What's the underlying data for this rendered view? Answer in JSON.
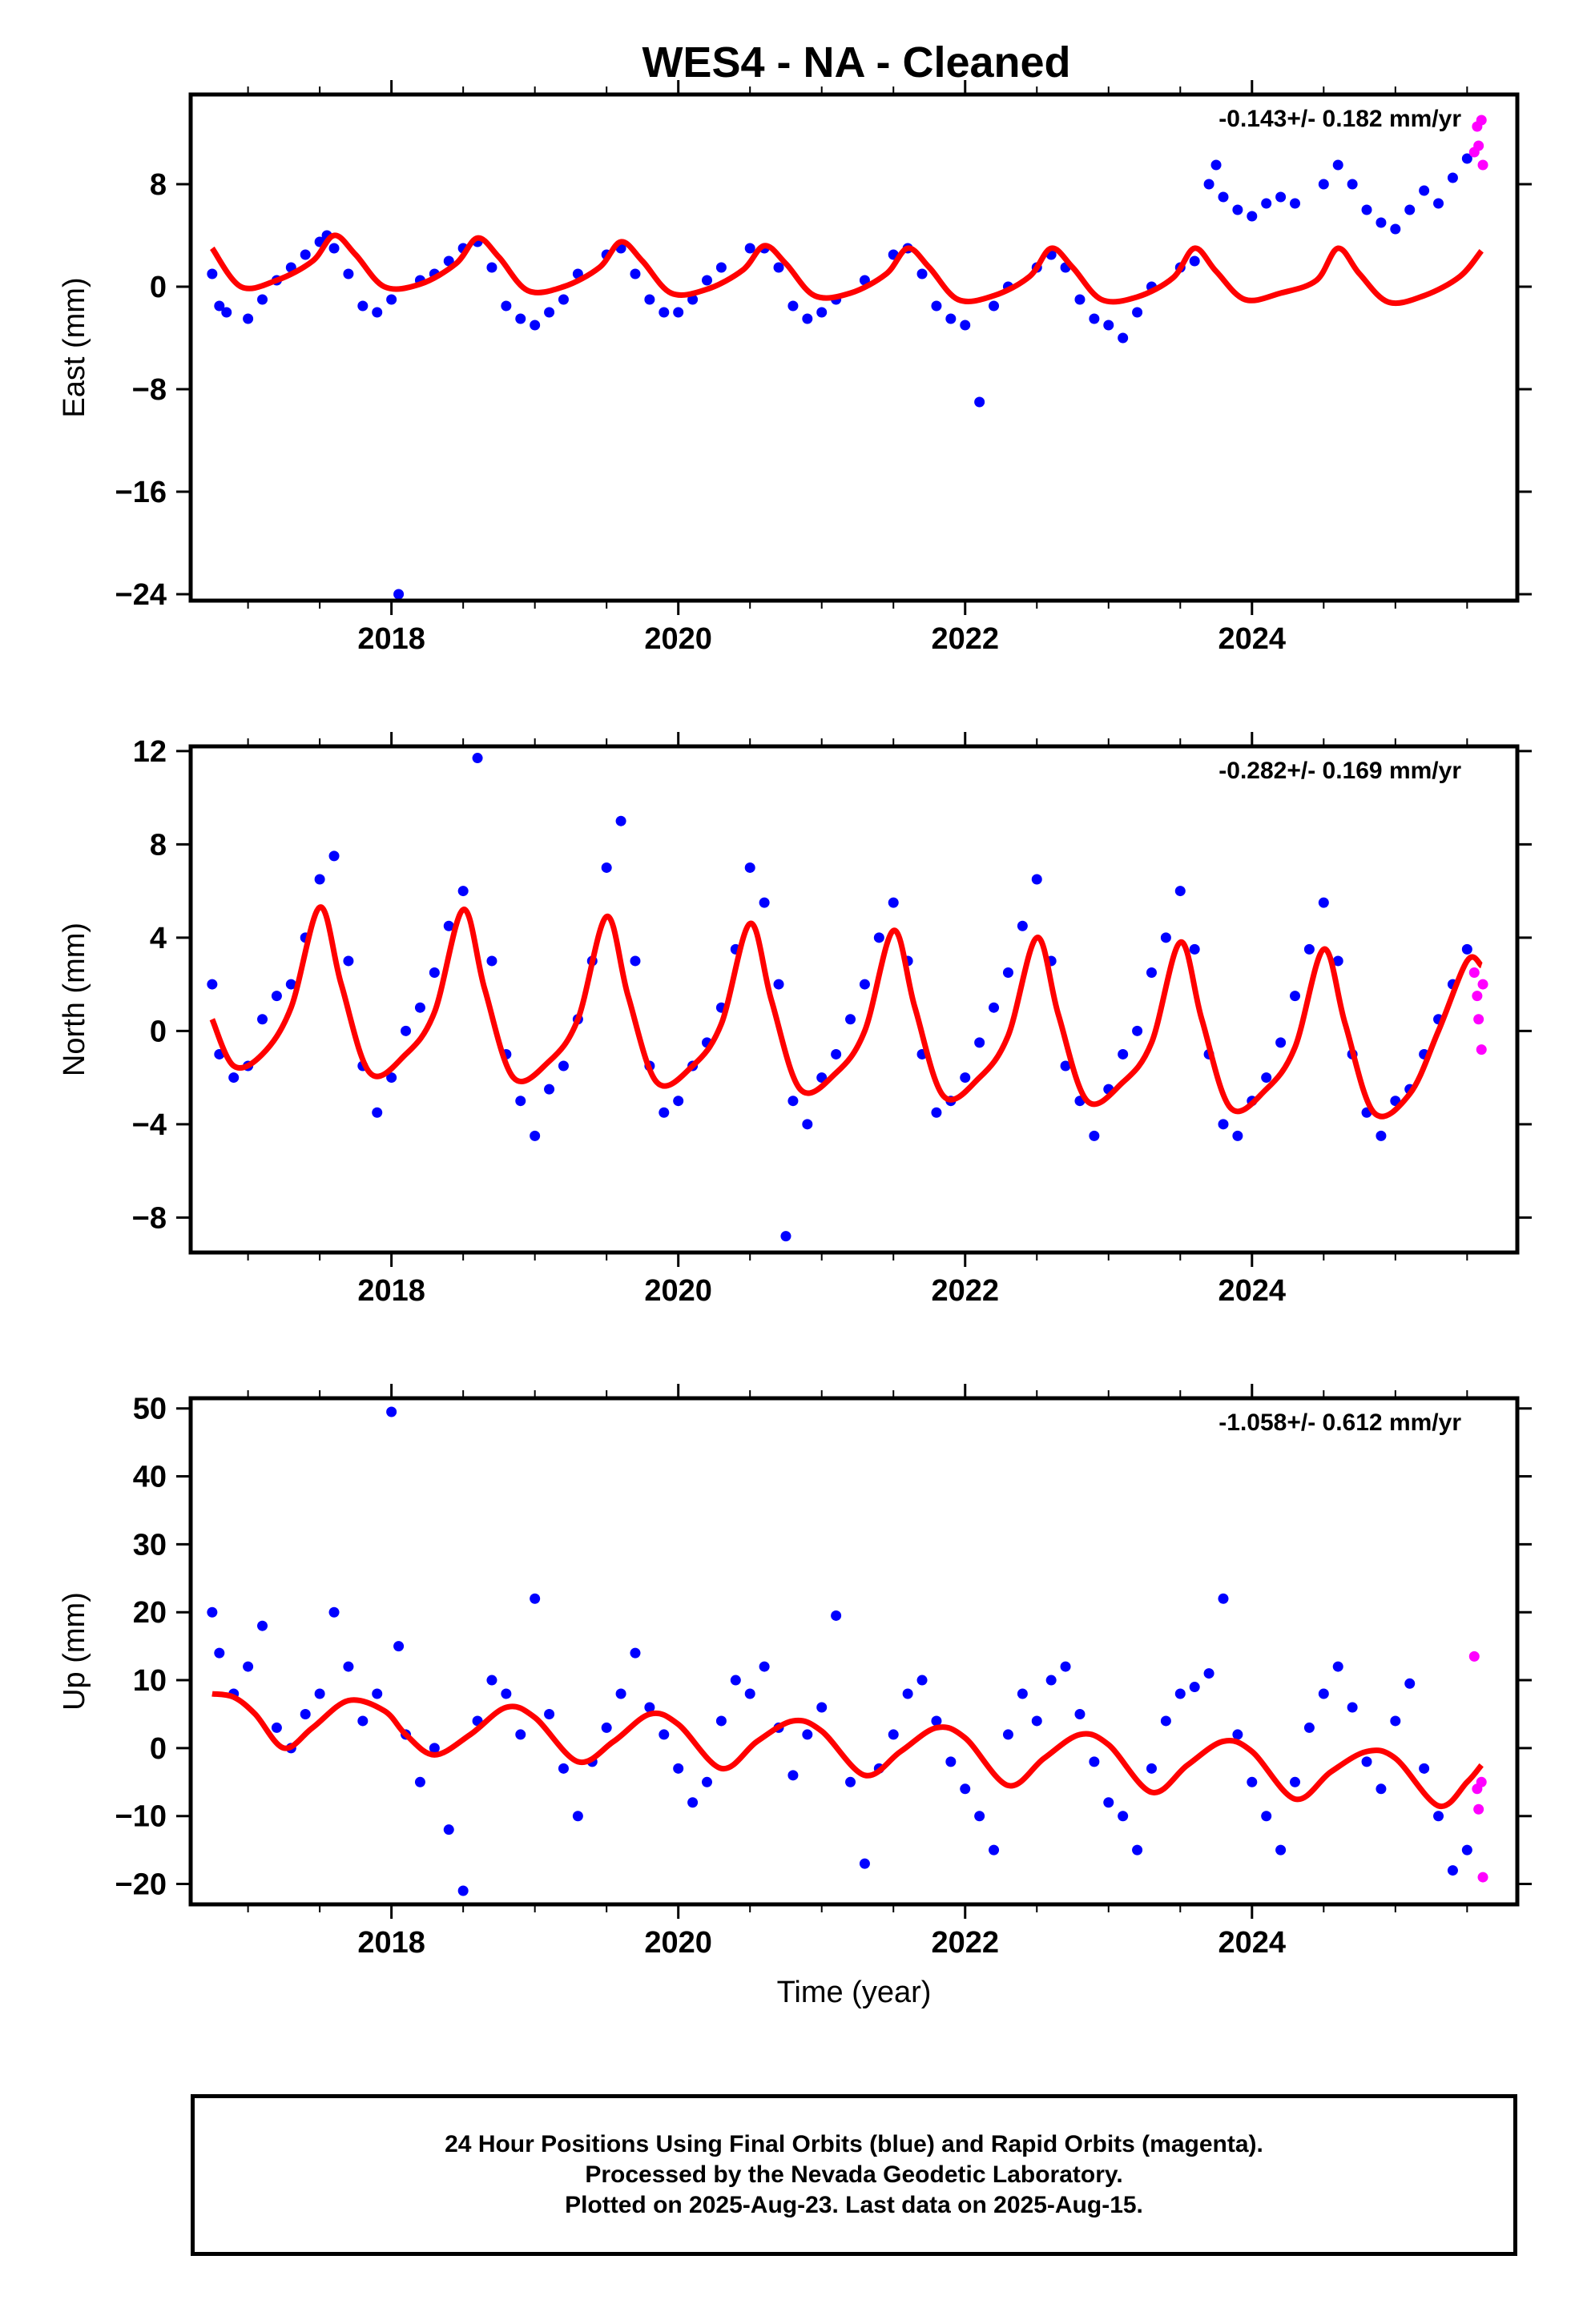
{
  "title": "WES4  - NA - Cleaned",
  "xlabel": "Time (year)",
  "footer": [
    "24 Hour Positions Using Final Orbits (blue) and Rapid Orbits (magenta).",
    "Processed by the Nevada Geodetic Laboratory.",
    "Plotted on 2025-Aug-23. Last data on 2025-Aug-15."
  ],
  "colors": {
    "final": "#0000ff",
    "rapid": "#ff00ff",
    "model": "#ff0000",
    "axis": "#000000"
  },
  "chart_data": [
    {
      "type": "scatter",
      "ylabel": "East (mm)",
      "rate": "-0.143+/- 0.182 mm/yr",
      "xlim": [
        2016.6,
        2025.85
      ],
      "ylim": [
        -24.5,
        15
      ],
      "xticks": [
        2018,
        2020,
        2022,
        2024
      ],
      "yticks": [
        -24,
        -16,
        -8,
        0,
        8
      ],
      "ytick_labels": [
        "−24",
        "−16",
        "−8",
        "0",
        "8"
      ],
      "series": [
        {
          "x": [
            2016.75,
            2016.8,
            2016.85,
            2017.0,
            2017.1,
            2017.2,
            2017.3,
            2017.4,
            2017.5,
            2017.55,
            2017.6,
            2017.7,
            2017.8,
            2017.9,
            2018.0,
            2018.05,
            2018.2,
            2018.3,
            2018.4,
            2018.5,
            2018.6,
            2018.7,
            2018.8,
            2018.9,
            2019.0,
            2019.1,
            2019.2,
            2019.3,
            2019.5,
            2019.6,
            2019.7,
            2019.8,
            2019.9,
            2020.0,
            2020.1,
            2020.2,
            2020.3,
            2020.5,
            2020.6,
            2020.7,
            2020.8,
            2020.9,
            2021.0,
            2021.1,
            2021.3,
            2021.5,
            2021.6,
            2021.7,
            2021.8,
            2021.9,
            2022.0,
            2022.1,
            2022.2,
            2022.3,
            2022.5,
            2022.6,
            2022.7,
            2022.8,
            2022.9,
            2023.0,
            2023.1,
            2023.2,
            2023.3,
            2023.5,
            2023.6,
            2023.7,
            2023.75,
            2023.8,
            2023.9,
            2024.0,
            2024.1,
            2024.2,
            2024.3,
            2024.5,
            2024.6,
            2024.7,
            2024.8,
            2024.9,
            2025.0,
            2025.1,
            2025.2,
            2025.3,
            2025.4,
            2025.5
          ],
          "y": [
            1.0,
            -1.5,
            -2.0,
            -2.5,
            -1.0,
            0.5,
            1.5,
            2.5,
            3.5,
            4.0,
            3.0,
            1.0,
            -1.5,
            -2.0,
            -1.0,
            -24.0,
            0.5,
            1.0,
            2.0,
            3.0,
            3.5,
            1.5,
            -1.5,
            -2.5,
            -3.0,
            -2.0,
            -1.0,
            1.0,
            2.5,
            3.0,
            1.0,
            -1.0,
            -2.0,
            -2.0,
            -1.0,
            0.5,
            1.5,
            3.0,
            3.0,
            1.5,
            -1.5,
            -2.5,
            -2.0,
            -1.0,
            0.5,
            2.5,
            3.0,
            1.0,
            -1.5,
            -2.5,
            -3.0,
            -9.0,
            -1.5,
            0.0,
            1.5,
            2.5,
            1.5,
            -1.0,
            -2.5,
            -3.0,
            -4.0,
            -2.0,
            0.0,
            1.5,
            2.0,
            8.0,
            9.5,
            7.0,
            6.0,
            5.5,
            6.5,
            7.0,
            6.5,
            8.0,
            9.5,
            8.0,
            6.0,
            5.0,
            4.5,
            6.0,
            7.5,
            6.5,
            8.5,
            10.0
          ],
          "color": "#0000ff"
        },
        {
          "x": [
            2025.55,
            2025.57,
            2025.58,
            2025.6,
            2025.61
          ],
          "y": [
            10.5,
            12.5,
            11.0,
            13.0,
            9.5
          ],
          "color": "#ff00ff"
        }
      ],
      "model": {
        "x": [
          2016.75,
          2016.95,
          2017.2,
          2017.45,
          2017.6,
          2017.75,
          2017.95,
          2018.2,
          2018.45,
          2018.6,
          2018.75,
          2018.95,
          2019.2,
          2019.45,
          2019.6,
          2019.75,
          2019.95,
          2020.2,
          2020.45,
          2020.6,
          2020.75,
          2020.95,
          2021.2,
          2021.45,
          2021.6,
          2021.75,
          2021.95,
          2022.2,
          2022.45,
          2022.6,
          2022.75,
          2022.95,
          2023.2,
          2023.45,
          2023.6,
          2023.75,
          2023.95,
          2024.2,
          2024.45,
          2024.6,
          2024.75,
          2024.95,
          2025.2,
          2025.45,
          2025.6
        ],
        "y": [
          3.0,
          0.0,
          0.5,
          2.0,
          4.0,
          2.5,
          0.0,
          0.2,
          1.8,
          3.8,
          2.3,
          -0.3,
          0.0,
          1.5,
          3.5,
          2.0,
          -0.5,
          -0.2,
          1.3,
          3.2,
          1.8,
          -0.7,
          -0.5,
          1.0,
          3.0,
          1.5,
          -1.0,
          -0.7,
          0.8,
          3.0,
          1.5,
          -1.0,
          -0.8,
          0.7,
          3.0,
          1.2,
          -1.0,
          -0.5,
          0.5,
          3.0,
          1.0,
          -1.2,
          -0.7,
          0.8,
          2.8
        ]
      }
    },
    {
      "type": "scatter",
      "ylabel": "North (mm)",
      "rate": "-0.282+/- 0.169 mm/yr",
      "xlim": [
        2016.6,
        2025.85
      ],
      "ylim": [
        -9.5,
        12.2
      ],
      "xticks": [
        2018,
        2020,
        2022,
        2024
      ],
      "yticks": [
        -8,
        -4,
        0,
        4,
        8,
        12
      ],
      "ytick_labels": [
        "−8",
        "−4",
        "0",
        "4",
        "8",
        "12"
      ],
      "series": [
        {
          "x": [
            2016.75,
            2016.8,
            2016.9,
            2017.0,
            2017.1,
            2017.2,
            2017.3,
            2017.4,
            2017.5,
            2017.6,
            2017.7,
            2017.8,
            2017.9,
            2018.0,
            2018.1,
            2018.2,
            2018.3,
            2018.4,
            2018.5,
            2018.6,
            2018.7,
            2018.8,
            2018.9,
            2019.0,
            2019.1,
            2019.2,
            2019.3,
            2019.4,
            2019.5,
            2019.6,
            2019.7,
            2019.8,
            2019.9,
            2020.0,
            2020.1,
            2020.2,
            2020.3,
            2020.4,
            2020.5,
            2020.6,
            2020.7,
            2020.75,
            2020.8,
            2020.9,
            2021.0,
            2021.1,
            2021.2,
            2021.3,
            2021.4,
            2021.5,
            2021.6,
            2021.7,
            2021.8,
            2021.9,
            2022.0,
            2022.1,
            2022.2,
            2022.3,
            2022.4,
            2022.5,
            2022.6,
            2022.7,
            2022.8,
            2022.9,
            2023.0,
            2023.1,
            2023.2,
            2023.3,
            2023.4,
            2023.5,
            2023.6,
            2023.7,
            2023.8,
            2023.9,
            2024.0,
            2024.1,
            2024.2,
            2024.3,
            2024.4,
            2024.5,
            2024.6,
            2024.7,
            2024.8,
            2024.9,
            2025.0,
            2025.1,
            2025.2,
            2025.3,
            2025.4,
            2025.5
          ],
          "y": [
            2.0,
            -1.0,
            -2.0,
            -1.5,
            0.5,
            1.5,
            2.0,
            4.0,
            6.5,
            7.5,
            3.0,
            -1.5,
            -3.5,
            -2.0,
            0.0,
            1.0,
            2.5,
            4.5,
            6.0,
            11.7,
            3.0,
            -1.0,
            -3.0,
            -4.5,
            -2.5,
            -1.5,
            0.5,
            3.0,
            7.0,
            9.0,
            3.0,
            -1.5,
            -3.5,
            -3.0,
            -1.5,
            -0.5,
            1.0,
            3.5,
            7.0,
            5.5,
            2.0,
            -8.8,
            -3.0,
            -4.0,
            -2.0,
            -1.0,
            0.5,
            2.0,
            4.0,
            5.5,
            3.0,
            -1.0,
            -3.5,
            -3.0,
            -2.0,
            -0.5,
            1.0,
            2.5,
            4.5,
            6.5,
            3.0,
            -1.5,
            -3.0,
            -4.5,
            -2.5,
            -1.0,
            0.0,
            2.5,
            4.0,
            6.0,
            3.5,
            -1.0,
            -4.0,
            -4.5,
            -3.0,
            -2.0,
            -0.5,
            1.5,
            3.5,
            5.5,
            3.0,
            -1.0,
            -3.5,
            -4.5,
            -3.0,
            -2.5,
            -1.0,
            0.5,
            2.0,
            3.5
          ],
          "color": "#0000ff"
        },
        {
          "x": [
            2025.55,
            2025.57,
            2025.58,
            2025.6,
            2025.61
          ],
          "y": [
            2.5,
            1.5,
            0.5,
            -0.8,
            2.0
          ],
          "color": "#ff00ff"
        }
      ],
      "model": {
        "x": [
          2016.75,
          2016.9,
          2017.1,
          2017.3,
          2017.5,
          2017.65,
          2017.85,
          2018.1,
          2018.3,
          2018.5,
          2018.65,
          2018.85,
          2019.1,
          2019.3,
          2019.5,
          2019.65,
          2019.85,
          2020.1,
          2020.3,
          2020.5,
          2020.65,
          2020.85,
          2021.1,
          2021.3,
          2021.5,
          2021.65,
          2021.85,
          2022.1,
          2022.3,
          2022.5,
          2022.65,
          2022.85,
          2023.1,
          2023.3,
          2023.5,
          2023.65,
          2023.85,
          2024.1,
          2024.3,
          2024.5,
          2024.65,
          2024.85,
          2025.1,
          2025.3,
          2025.5,
          2025.6
        ],
        "y": [
          0.5,
          -1.5,
          -1.0,
          1.0,
          5.3,
          2.0,
          -1.8,
          -1.0,
          0.8,
          5.2,
          1.8,
          -2.0,
          -1.3,
          0.5,
          4.9,
          1.5,
          -2.2,
          -1.5,
          0.3,
          4.6,
          1.3,
          -2.5,
          -1.8,
          0.0,
          4.3,
          1.0,
          -2.8,
          -2.0,
          -0.2,
          4.0,
          0.7,
          -3.0,
          -2.2,
          -0.5,
          3.8,
          0.5,
          -3.3,
          -2.5,
          -0.7,
          3.5,
          0.3,
          -3.5,
          -2.7,
          0.0,
          3.0,
          2.8
        ]
      }
    },
    {
      "type": "scatter",
      "ylabel": "Up (mm)",
      "rate": "-1.058+/- 0.612 mm/yr",
      "xlim": [
        2016.6,
        2025.85
      ],
      "ylim": [
        -23,
        51.5
      ],
      "xticks": [
        2018,
        2020,
        2022,
        2024
      ],
      "yticks": [
        -20,
        -10,
        0,
        10,
        20,
        30,
        40,
        50
      ],
      "ytick_labels": [
        "−20",
        "−10",
        "0",
        "10",
        "20",
        "30",
        "40",
        "50"
      ],
      "series": [
        {
          "x": [
            2016.75,
            2016.8,
            2016.9,
            2017.0,
            2017.1,
            2017.2,
            2017.3,
            2017.4,
            2017.5,
            2017.6,
            2017.7,
            2017.8,
            2017.9,
            2018.0,
            2018.05,
            2018.1,
            2018.2,
            2018.3,
            2018.4,
            2018.5,
            2018.6,
            2018.7,
            2018.8,
            2018.9,
            2019.0,
            2019.1,
            2019.2,
            2019.3,
            2019.4,
            2019.5,
            2019.6,
            2019.7,
            2019.8,
            2019.9,
            2020.0,
            2020.1,
            2020.2,
            2020.3,
            2020.4,
            2020.5,
            2020.6,
            2020.7,
            2020.8,
            2020.9,
            2021.0,
            2021.1,
            2021.2,
            2021.3,
            2021.4,
            2021.5,
            2021.6,
            2021.7,
            2021.8,
            2021.9,
            2022.0,
            2022.1,
            2022.2,
            2022.3,
            2022.4,
            2022.5,
            2022.6,
            2022.7,
            2022.8,
            2022.9,
            2023.0,
            2023.1,
            2023.2,
            2023.3,
            2023.4,
            2023.5,
            2023.6,
            2023.7,
            2023.8,
            2023.9,
            2024.0,
            2024.1,
            2024.2,
            2024.3,
            2024.4,
            2024.5,
            2024.6,
            2024.7,
            2024.8,
            2024.9,
            2025.0,
            2025.1,
            2025.2,
            2025.3,
            2025.4,
            2025.5
          ],
          "y": [
            20.0,
            14.0,
            8.0,
            12.0,
            18.0,
            3.0,
            0.0,
            5.0,
            8.0,
            20.0,
            12.0,
            4.0,
            8.0,
            49.5,
            15.0,
            2.0,
            -5.0,
            0.0,
            -12.0,
            -21.0,
            4.0,
            10.0,
            8.0,
            2.0,
            22.0,
            5.0,
            -3.0,
            -10.0,
            -2.0,
            3.0,
            8.0,
            14.0,
            6.0,
            2.0,
            -3.0,
            -8.0,
            -5.0,
            4.0,
            10.0,
            8.0,
            12.0,
            3.0,
            -4.0,
            2.0,
            6.0,
            19.5,
            -5.0,
            -17.0,
            -3.0,
            2.0,
            8.0,
            10.0,
            4.0,
            -2.0,
            -6.0,
            -10.0,
            -15.0,
            2.0,
            8.0,
            4.0,
            10.0,
            12.0,
            5.0,
            -2.0,
            -8.0,
            -10.0,
            -15.0,
            -3.0,
            4.0,
            8.0,
            9.0,
            11.0,
            22.0,
            2.0,
            -5.0,
            -10.0,
            -15.0,
            -5.0,
            3.0,
            8.0,
            12.0,
            6.0,
            -2.0,
            -6.0,
            4.0,
            9.5,
            -3.0,
            -10.0,
            -18.0,
            -15.0
          ],
          "color": "#0000ff"
        },
        {
          "x": [
            2025.55,
            2025.57,
            2025.58,
            2025.6,
            2025.61
          ],
          "y": [
            13.5,
            -6.0,
            -9.0,
            -5.0,
            -19.0
          ],
          "color": "#ff00ff"
        }
      ],
      "model": {
        "x": [
          2016.75,
          2016.9,
          2017.05,
          2017.25,
          2017.45,
          2017.7,
          2017.95,
          2018.1,
          2018.3,
          2018.55,
          2018.8,
          2019.0,
          2019.3,
          2019.55,
          2019.8,
          2020.0,
          2020.3,
          2020.55,
          2020.8,
          2021.0,
          2021.3,
          2021.55,
          2021.8,
          2022.0,
          2022.3,
          2022.55,
          2022.8,
          2023.0,
          2023.3,
          2023.55,
          2023.8,
          2024.0,
          2024.3,
          2024.55,
          2024.8,
          2025.0,
          2025.3,
          2025.5,
          2025.6
        ],
        "y": [
          8.0,
          7.5,
          5.0,
          0.0,
          3.0,
          7.0,
          5.5,
          2.0,
          -1.0,
          2.0,
          6.0,
          4.5,
          -2.0,
          1.0,
          5.0,
          3.5,
          -3.0,
          1.0,
          4.0,
          2.5,
          -4.0,
          -0.5,
          3.0,
          1.5,
          -5.5,
          -1.5,
          2.0,
          0.5,
          -6.5,
          -2.5,
          1.0,
          -0.5,
          -7.5,
          -3.5,
          -0.5,
          -1.5,
          -8.5,
          -5.0,
          -2.5
        ]
      }
    }
  ]
}
